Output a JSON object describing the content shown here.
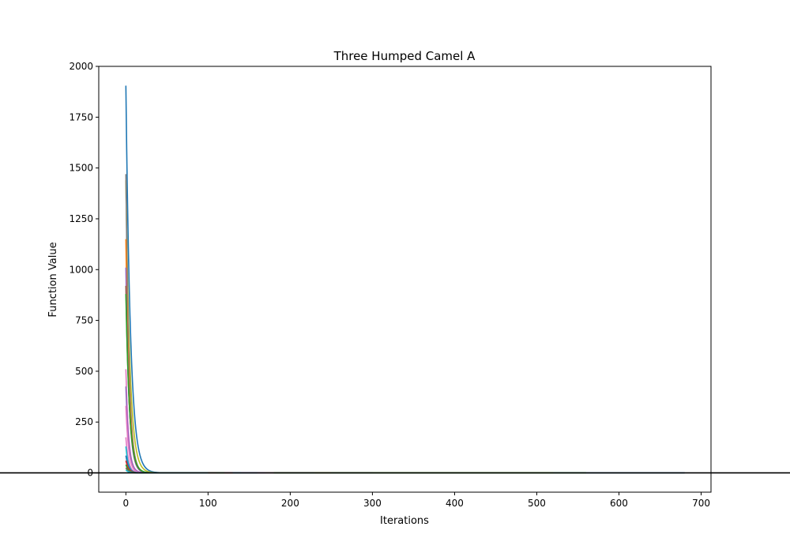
{
  "chart_data": {
    "type": "line",
    "title": "Three Humped Camel A",
    "xlabel": "Iterations",
    "ylabel": "Function Value",
    "xlim": [
      -33,
      712
    ],
    "ylim": [
      -95,
      2000
    ],
    "xticks": [
      0,
      100,
      200,
      300,
      400,
      500,
      600,
      700
    ],
    "yticks": [
      0,
      250,
      500,
      750,
      1000,
      1250,
      1500,
      1750,
      2000
    ],
    "grid": false,
    "legend": "none",
    "reference_line": {
      "y": 0,
      "color": "#000000"
    },
    "series": [
      {
        "start": 1905,
        "end_x": 680,
        "decay": 0.18,
        "color": "#1f77b4"
      },
      {
        "start": 1440,
        "end_x": 520,
        "decay": 0.2,
        "color": "#bcbd22"
      },
      {
        "start": 1470,
        "end_x": 300,
        "decay": 0.26,
        "color": "#7f7f7f"
      },
      {
        "start": 1150,
        "end_x": 250,
        "decay": 0.25,
        "color": "#ff7f0e"
      },
      {
        "start": 1010,
        "end_x": 230,
        "decay": 0.26,
        "color": "#9467bd"
      },
      {
        "start": 920,
        "end_x": 200,
        "decay": 0.24,
        "color": "#8c564b"
      },
      {
        "start": 880,
        "end_x": 560,
        "decay": 0.23,
        "color": "#2ca02c"
      },
      {
        "start": 510,
        "end_x": 180,
        "decay": 0.3,
        "color": "#e377c2"
      },
      {
        "start": 425,
        "end_x": 170,
        "decay": 0.28,
        "color": "#9467bd"
      },
      {
        "start": 330,
        "end_x": 160,
        "decay": 0.3,
        "color": "#e377c2"
      },
      {
        "start": 175,
        "end_x": 150,
        "decay": 0.32,
        "color": "#e377c2"
      },
      {
        "start": 130,
        "end_x": 140,
        "decay": 0.34,
        "color": "#17becf"
      },
      {
        "start": 85,
        "end_x": 160,
        "decay": 0.3,
        "color": "#1f77b4"
      },
      {
        "start": 60,
        "end_x": 130,
        "decay": 0.3,
        "color": "#d62728"
      },
      {
        "start": 40,
        "end_x": 120,
        "decay": 0.3,
        "color": "#2ca02c"
      },
      {
        "start": 25,
        "end_x": 110,
        "decay": 0.3,
        "color": "#8c564b"
      },
      {
        "start": 15,
        "end_x": 100,
        "decay": 0.3,
        "color": "#17becf"
      }
    ]
  }
}
